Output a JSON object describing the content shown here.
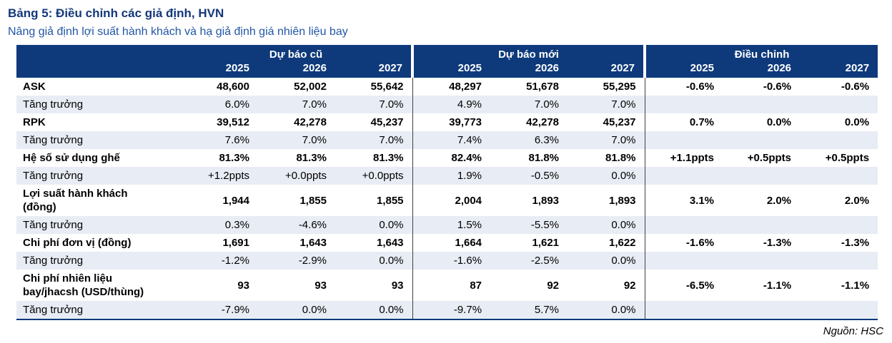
{
  "title": "Bảng 5: Điều chỉnh các giả định, HVN",
  "subtitle": "Nâng giả định lợi suất hành khách và hạ giả định giá nhiên liệu bay",
  "source": "Nguồn: HSC",
  "colors": {
    "header-bg": "#0e3a7b",
    "title": "#14387a",
    "subtitle": "#2257a5",
    "stripe": "#e8ecf4",
    "divider": "#404040"
  },
  "table": {
    "groups": [
      {
        "label": "Dự báo cũ",
        "years": [
          "2025",
          "2026",
          "2027"
        ]
      },
      {
        "label": "Dự báo mới",
        "years": [
          "2025",
          "2026",
          "2027"
        ]
      },
      {
        "label": "Điều chỉnh",
        "years": [
          "2025",
          "2026",
          "2027"
        ]
      }
    ],
    "rows": [
      {
        "label": "ASK",
        "bold": true,
        "old": [
          "48,600",
          "52,002",
          "55,642"
        ],
        "new": [
          "48,297",
          "51,678",
          "55,295"
        ],
        "adj": [
          "-0.6%",
          "-0.6%",
          "-0.6%"
        ]
      },
      {
        "label": "Tăng trưởng",
        "bold": false,
        "old": [
          "6.0%",
          "7.0%",
          "7.0%"
        ],
        "new": [
          "4.9%",
          "7.0%",
          "7.0%"
        ],
        "adj": [
          "",
          "",
          ""
        ]
      },
      {
        "label": "RPK",
        "bold": true,
        "old": [
          "39,512",
          "42,278",
          "45,237"
        ],
        "new": [
          "39,773",
          "42,278",
          "45,237"
        ],
        "adj": [
          "0.7%",
          "0.0%",
          "0.0%"
        ]
      },
      {
        "label": "Tăng trưởng",
        "bold": false,
        "old": [
          "7.6%",
          "7.0%",
          "7.0%"
        ],
        "new": [
          "7.4%",
          "6.3%",
          "7.0%"
        ],
        "adj": [
          "",
          "",
          ""
        ]
      },
      {
        "label": "Hệ số sử dụng ghế",
        "bold": true,
        "old": [
          "81.3%",
          "81.3%",
          "81.3%"
        ],
        "new": [
          "82.4%",
          "81.8%",
          "81.8%"
        ],
        "adj": [
          "+1.1ppts",
          "+0.5ppts",
          "+0.5ppts"
        ]
      },
      {
        "label": "Tăng trưởng",
        "bold": false,
        "old": [
          "+1.2ppts",
          "+0.0ppts",
          "+0.0ppts"
        ],
        "new": [
          "1.9%",
          "-0.5%",
          "0.0%"
        ],
        "adj": [
          "",
          "",
          ""
        ]
      },
      {
        "label": "Lợi suất hành khách (đồng)",
        "bold": true,
        "old": [
          "1,944",
          "1,855",
          "1,855"
        ],
        "new": [
          "2,004",
          "1,893",
          "1,893"
        ],
        "adj": [
          "3.1%",
          "2.0%",
          "2.0%"
        ]
      },
      {
        "label": "Tăng trưởng",
        "bold": false,
        "old": [
          "0.3%",
          "-4.6%",
          "0.0%"
        ],
        "new": [
          "1.5%",
          "-5.5%",
          "0.0%"
        ],
        "adj": [
          "",
          "",
          ""
        ]
      },
      {
        "label": "Chi phí đơn vị (đồng)",
        "bold": true,
        "old": [
          "1,691",
          "1,643",
          "1,643"
        ],
        "new": [
          "1,664",
          "1,621",
          "1,622"
        ],
        "adj": [
          "-1.6%",
          "-1.3%",
          "-1.3%"
        ]
      },
      {
        "label": "Tăng trưởng",
        "bold": false,
        "old": [
          "-1.2%",
          "-2.9%",
          "0.0%"
        ],
        "new": [
          "-1.6%",
          "-2.5%",
          "0.0%"
        ],
        "adj": [
          "",
          "",
          ""
        ]
      },
      {
        "label": "Chi phí nhiên liệu bay/jhacsh (USD/thùng)",
        "bold": true,
        "old": [
          "93",
          "93",
          "93"
        ],
        "new": [
          "87",
          "92",
          "92"
        ],
        "adj": [
          "-6.5%",
          "-1.1%",
          "-1.1%"
        ]
      },
      {
        "label": "Tăng trưởng",
        "bold": false,
        "old": [
          "-7.9%",
          "0.0%",
          "0.0%"
        ],
        "new": [
          "-9.7%",
          "5.7%",
          "0.0%"
        ],
        "adj": [
          "",
          "",
          ""
        ]
      }
    ]
  }
}
